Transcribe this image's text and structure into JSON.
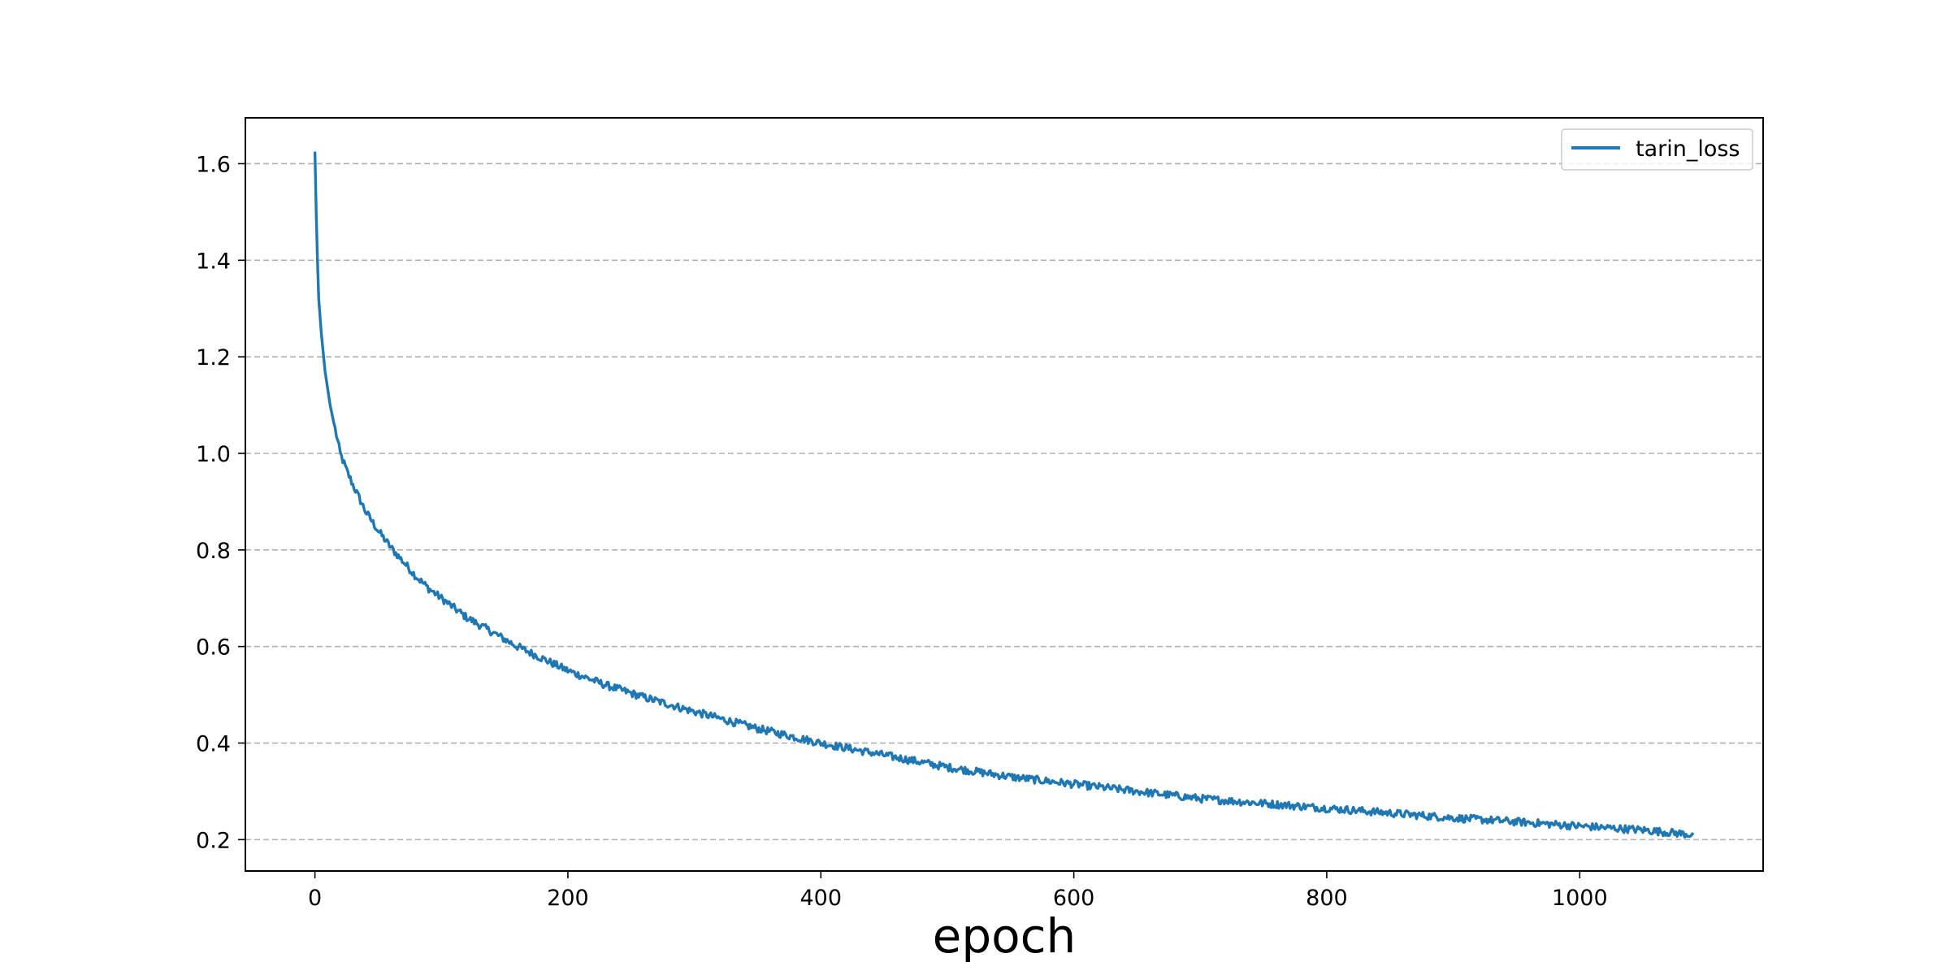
{
  "chart_data": {
    "type": "line",
    "title": "",
    "xlabel": "epoch",
    "ylabel": "",
    "xlim": [
      -55,
      1145
    ],
    "ylim": [
      0.135,
      1.695
    ],
    "xticks": [
      0,
      200,
      400,
      600,
      800,
      1000
    ],
    "xtick_labels": [
      "0",
      "200",
      "400",
      "600",
      "800",
      "1000"
    ],
    "yticks": [
      0.2,
      0.4,
      0.6,
      0.8,
      1.0,
      1.2,
      1.4,
      1.6
    ],
    "ytick_labels": [
      "0.2",
      "0.4",
      "0.6",
      "0.8",
      "1.0",
      "1.2",
      "1.4",
      "1.6"
    ],
    "grid": "horizontal dashed",
    "legend_position": "top-right",
    "series": [
      {
        "name": "tarin_loss",
        "color": "#1f77b4",
        "x": [
          0,
          1,
          2,
          3,
          5,
          8,
          12,
          16,
          20,
          25,
          30,
          40,
          50,
          60,
          70,
          80,
          90,
          100,
          120,
          140,
          160,
          180,
          200,
          230,
          260,
          300,
          350,
          400,
          450,
          500,
          550,
          600,
          650,
          700,
          750,
          800,
          850,
          900,
          950,
          1000,
          1050,
          1090
        ],
        "y": [
          1.625,
          1.5,
          1.4,
          1.32,
          1.25,
          1.17,
          1.1,
          1.05,
          1.0,
          0.965,
          0.935,
          0.88,
          0.84,
          0.805,
          0.775,
          0.745,
          0.72,
          0.7,
          0.66,
          0.63,
          0.6,
          0.575,
          0.55,
          0.52,
          0.495,
          0.465,
          0.43,
          0.4,
          0.375,
          0.35,
          0.33,
          0.315,
          0.3,
          0.285,
          0.275,
          0.265,
          0.255,
          0.245,
          0.237,
          0.228,
          0.22,
          0.21
        ]
      }
    ]
  }
}
